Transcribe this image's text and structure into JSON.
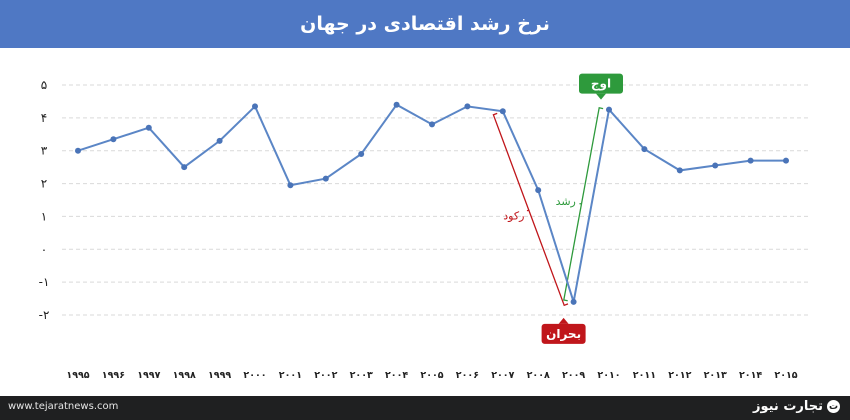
{
  "title": "نرخ رشد اقتصادی در جهان",
  "footer": {
    "website": "www.tejaratnews.com",
    "brand": "تجارت نیوز",
    "brand_mark": "ت"
  },
  "colors": {
    "header": "#4f78c4",
    "line": "#5b86c6",
    "marker": "#4a74b8",
    "decline": "#c0161b",
    "growth": "#2e9a3c",
    "footer": "#1f2021"
  },
  "chart_data": {
    "type": "line",
    "title": "نرخ رشد اقتصادی در جهان",
    "xlabel": "",
    "ylabel": "",
    "ylim": [
      -2,
      5
    ],
    "yticks": [
      -2,
      -1,
      0,
      1,
      2,
      3,
      4,
      5
    ],
    "ytick_labels": [
      "-۲",
      "-۱",
      "۰",
      "۱",
      "۲",
      "۳",
      "۴",
      "۵"
    ],
    "grid": "horizontal-dashed",
    "x": [
      "1995",
      "1996",
      "1997",
      "1998",
      "1999",
      "2000",
      "2001",
      "2002",
      "2003",
      "2004",
      "2005",
      "2006",
      "2007",
      "2008",
      "2009",
      "2010",
      "2011",
      "2012",
      "2013",
      "2014",
      "2015"
    ],
    "x_labels": [
      "۱۹۹۵",
      "۱۹۹۶",
      "۱۹۹۷",
      "۱۹۹۸",
      "۱۹۹۹",
      "۲۰۰۰",
      "۲۰۰۱",
      "۲۰۰۲",
      "۲۰۰۳",
      "۲۰۰۴",
      "۲۰۰۵",
      "۲۰۰۶",
      "۲۰۰۷",
      "۲۰۰۸",
      "۲۰۰۹",
      "۲۰۱۰",
      "۲۰۱۱",
      "۲۰۱۲",
      "۲۰۱۳",
      "۲۰۱۴",
      "۲۰۱۵"
    ],
    "series": [
      {
        "values": [
          3.0,
          3.35,
          3.7,
          2.5,
          3.3,
          4.35,
          1.95,
          2.15,
          2.9,
          4.4,
          3.8,
          4.35,
          4.2,
          1.8,
          -1.6,
          4.25,
          3.05,
          2.4,
          2.55,
          2.7,
          2.7
        ]
      }
    ],
    "annotations": [
      {
        "label": "بحران",
        "x": "2009",
        "style": "red-callout"
      },
      {
        "label": "اوج",
        "x": "2010",
        "style": "green-callout"
      },
      {
        "label": "رکود",
        "from": "2007",
        "to": "2009",
        "style": "red-brace"
      },
      {
        "label": "رشد",
        "from": "2009",
        "to": "2010",
        "style": "green-brace"
      }
    ]
  }
}
